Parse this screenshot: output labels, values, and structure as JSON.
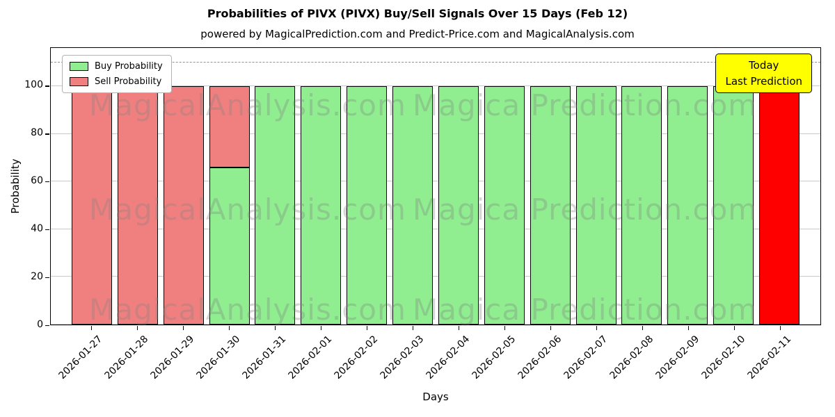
{
  "title": "Probabilities of PIVX (PIVX) Buy/Sell Signals Over 15 Days (Feb 12)",
  "subtitle": "powered by MagicalPrediction.com and Predict-Price.com and MagicalAnalysis.com",
  "legend": {
    "buy_label": "Buy Probability",
    "sell_label": "Sell Probability"
  },
  "annotation": {
    "line1": "Today",
    "line2": "Last Prediction"
  },
  "watermarks": [
    "MagicalAnalysis.com",
    "Magica Prediction.com"
  ],
  "colors": {
    "buy": "#90EE90",
    "sell": "#F08080",
    "today": "#FF0000",
    "annotation_bg": "#FFFF00",
    "grid": "#C8C8C8",
    "dashed_line": "#919191"
  },
  "chart_data": {
    "type": "bar",
    "stacked": true,
    "title": "Probabilities of PIVX (PIVX) Buy/Sell Signals Over 15 Days (Feb 12)",
    "xlabel": "Days",
    "ylabel": "Probability",
    "ylim": [
      0,
      116
    ],
    "yticks": [
      0,
      20,
      40,
      60,
      80,
      100
    ],
    "dashed_line_y": 110,
    "grid": true,
    "legend_position": "upper left",
    "categories": [
      "2026-01-27",
      "2026-01-28",
      "2026-01-29",
      "2026-01-30",
      "2026-01-31",
      "2026-02-01",
      "2026-02-02",
      "2026-02-03",
      "2026-02-04",
      "2026-02-05",
      "2026-02-06",
      "2026-02-07",
      "2026-02-08",
      "2026-02-09",
      "2026-02-10",
      "2026-02-11"
    ],
    "series": [
      {
        "name": "Buy Probability",
        "color": "#90EE90",
        "values": [
          0,
          0,
          0,
          66,
          100,
          100,
          100,
          100,
          100,
          100,
          100,
          100,
          100,
          100,
          100,
          0
        ]
      },
      {
        "name": "Sell Probability",
        "color": "#F08080",
        "values": [
          100,
          100,
          100,
          34,
          0,
          0,
          0,
          0,
          0,
          0,
          0,
          0,
          0,
          0,
          0,
          100
        ]
      }
    ],
    "today_index": 15,
    "today_color": "#FF0000"
  }
}
